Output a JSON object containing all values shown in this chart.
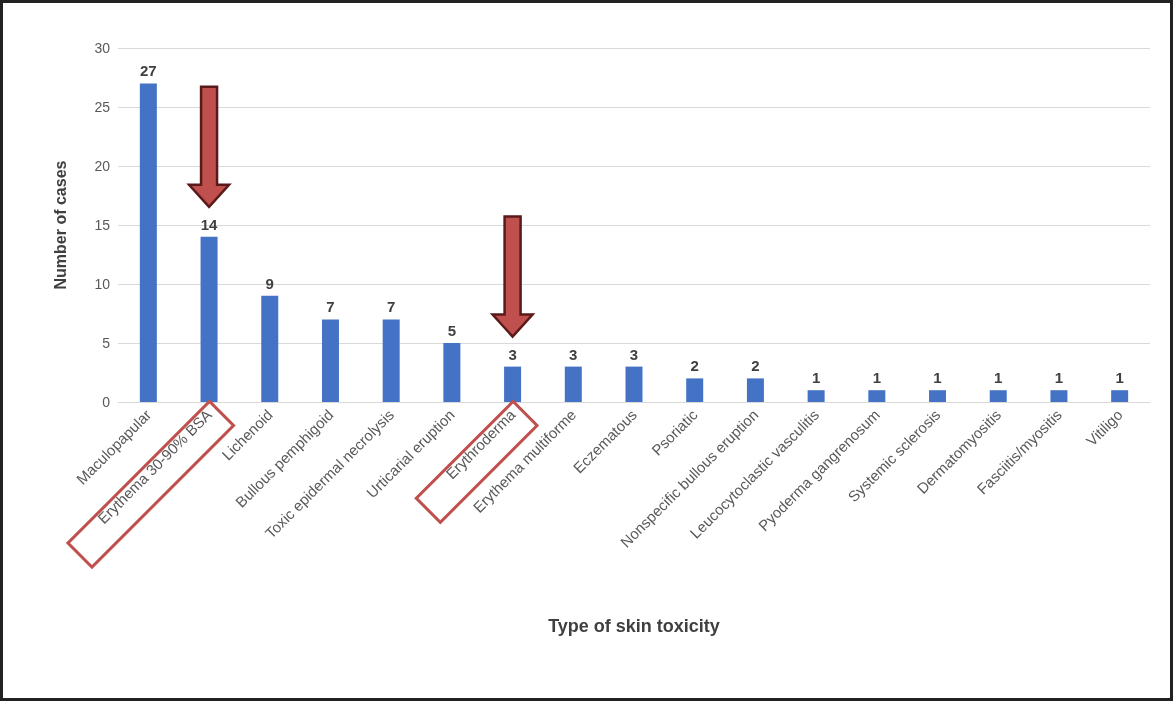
{
  "chart_data": {
    "type": "bar",
    "xlabel": "Type of skin toxicity",
    "ylabel": "Number of cases",
    "categories": [
      "Maculopapular",
      "Erythema 30-90% BSA",
      "Lichenoid",
      "Bullous pemphigoid",
      "Toxic epidermal necrolysis",
      "Urticarial eruption",
      "Erythroderma",
      "Erythema multiforme",
      "Eczematous",
      "Psoriatic",
      "Nonspecific bullous eruption",
      "Leucocytoclastic vasculitis",
      "Pyoderma gangrenosum",
      "Systemic sclerosis",
      "Dermatomyositis",
      "Fasciitis/myositis",
      "Vitiligo"
    ],
    "values": [
      27,
      14,
      9,
      7,
      7,
      5,
      3,
      3,
      3,
      2,
      2,
      1,
      1,
      1,
      1,
      1,
      1
    ],
    "color": "#4472c4",
    "ylim": [
      0,
      30
    ],
    "yticks": [
      0,
      5,
      10,
      15,
      20,
      25,
      30
    ],
    "grid": "y",
    "data_labels": true
  }
}
